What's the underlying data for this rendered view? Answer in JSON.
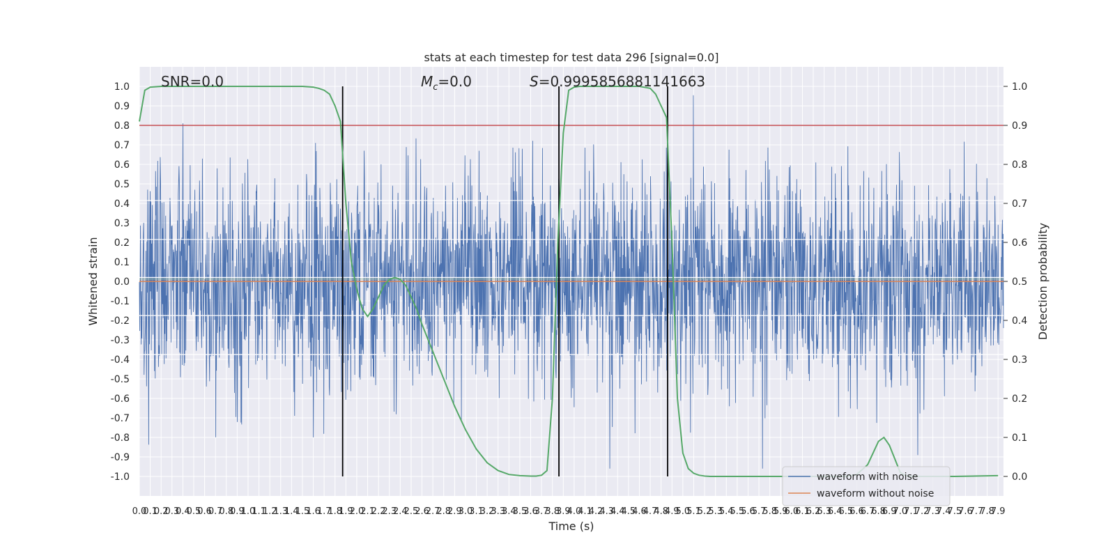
{
  "chart_data": {
    "type": "line",
    "title": "stats at each timestep for test data 296 [signal=0.0]",
    "xlabel": "Time (s)",
    "ylabel": "Whitened strain",
    "y2label": "Detection probability",
    "xlim": [
      0.0,
      7.95
    ],
    "ylim": [
      -1.1,
      1.1
    ],
    "y2lim": [
      -0.05,
      1.05
    ],
    "xticks": [
      0.0,
      0.1,
      0.2,
      0.3,
      0.4,
      0.5,
      0.6,
      0.7,
      0.8,
      0.9,
      1.0,
      1.1,
      1.2,
      1.3,
      1.4,
      1.5,
      1.6,
      1.7,
      1.8,
      1.9,
      2.0,
      2.1,
      2.2,
      2.3,
      2.4,
      2.5,
      2.6,
      2.7,
      2.8,
      2.9,
      3.0,
      3.1,
      3.2,
      3.3,
      3.4,
      3.5,
      3.6,
      3.7,
      3.8,
      3.9,
      4.0,
      4.1,
      4.2,
      4.3,
      4.4,
      4.5,
      4.6,
      4.7,
      4.8,
      4.9,
      5.0,
      5.1,
      5.2,
      5.3,
      5.4,
      5.5,
      5.6,
      5.7,
      5.8,
      5.9,
      6.0,
      6.1,
      6.2,
      6.3,
      6.4,
      6.5,
      6.6,
      6.7,
      6.8,
      6.9,
      7.0,
      7.1,
      7.2,
      7.3,
      7.4,
      7.5,
      7.6,
      7.7,
      7.8,
      7.9
    ],
    "yticks": [
      1.0,
      0.9,
      0.8,
      0.7,
      0.6,
      0.5,
      0.4,
      0.3,
      0.2,
      0.1,
      0.0,
      -0.1,
      -0.2,
      -0.3,
      -0.4,
      -0.5,
      -0.6,
      -0.7,
      -0.8,
      -0.9,
      -1.0
    ],
    "y2ticks": [
      1.0,
      0.9,
      0.8,
      0.7,
      0.6,
      0.5,
      0.4,
      0.3,
      0.2,
      0.1,
      0.0
    ],
    "annotations": {
      "snr": "SNR=0.0",
      "mc_symbol": "M",
      "mc_sub": "c",
      "mc_value": "=0.0",
      "s_symbol": "S",
      "s_value": "=0.9995856881141663"
    },
    "threshold_y2": 0.9,
    "vertical_lines_x": [
      1.87,
      3.86,
      4.86
    ],
    "series": [
      {
        "name": "waveform with noise",
        "axis": "left",
        "color": "#4c72b0",
        "note": "whitened noise"
      },
      {
        "name": "waveform without noise",
        "axis": "left",
        "color": "#dd8452",
        "values_constant": 0.0
      },
      {
        "axis": "right",
        "color": "#55a868",
        "x": [
          0.0,
          0.05,
          0.1,
          0.2,
          0.4,
          0.8,
          1.2,
          1.5,
          1.6,
          1.65,
          1.7,
          1.75,
          1.8,
          1.85,
          1.9,
          1.95,
          2.0,
          2.05,
          2.1,
          2.15,
          2.2,
          2.25,
          2.3,
          2.35,
          2.4,
          2.45,
          2.5,
          2.55,
          2.6,
          2.7,
          2.8,
          2.9,
          3.0,
          3.1,
          3.2,
          3.3,
          3.4,
          3.5,
          3.6,
          3.65,
          3.7,
          3.75,
          3.8,
          3.85,
          3.9,
          3.95,
          4.0,
          4.05,
          4.1,
          4.2,
          4.4,
          4.6,
          4.7,
          4.75,
          4.8,
          4.85,
          4.9,
          4.95,
          5.0,
          5.05,
          5.1,
          5.15,
          5.2,
          5.25,
          5.3,
          5.4,
          5.5,
          6.0,
          6.5,
          6.6,
          6.7,
          6.75,
          6.8,
          6.85,
          6.9,
          6.95,
          7.0,
          7.05,
          7.1,
          7.5,
          7.9
        ],
        "values": [
          0.91,
          0.99,
          0.998,
          1.0,
          1.0,
          1.0,
          1.0,
          1.0,
          0.998,
          0.995,
          0.99,
          0.98,
          0.95,
          0.91,
          0.7,
          0.55,
          0.48,
          0.43,
          0.41,
          0.43,
          0.46,
          0.49,
          0.505,
          0.51,
          0.505,
          0.49,
          0.46,
          0.43,
          0.39,
          0.32,
          0.25,
          0.18,
          0.12,
          0.07,
          0.035,
          0.015,
          0.005,
          0.002,
          0.001,
          0.001,
          0.003,
          0.015,
          0.2,
          0.6,
          0.88,
          0.99,
          0.998,
          1.0,
          1.0,
          1.0,
          1.0,
          1.0,
          0.995,
          0.98,
          0.95,
          0.92,
          0.6,
          0.2,
          0.06,
          0.02,
          0.008,
          0.003,
          0.001,
          0.0,
          0.0,
          0.0,
          0.0,
          0.0,
          0.0,
          0.005,
          0.03,
          0.06,
          0.09,
          0.1,
          0.08,
          0.045,
          0.01,
          0.002,
          0.0,
          0.0,
          0.002
        ]
      }
    ],
    "grid": true,
    "legend_position": "lower right"
  }
}
